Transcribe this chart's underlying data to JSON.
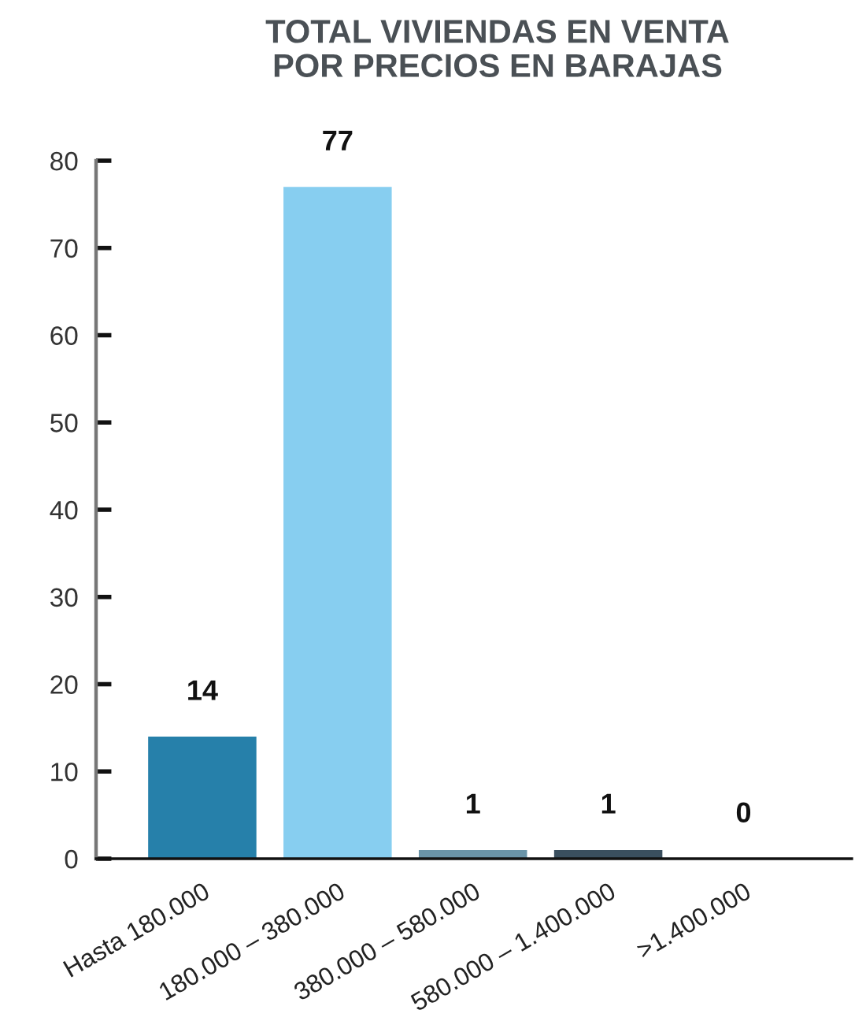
{
  "chart_data": {
    "type": "bar",
    "title": "TOTAL VIVIENDAS EN VENTA\nPOR PRECIOS EN BARAJAS",
    "categories": [
      "Hasta 180.000",
      "180.000 – 380.000",
      "380.000 – 580.000",
      "580.000 – 1.400.000",
      ">1.400.000"
    ],
    "values": [
      14,
      77,
      1,
      1,
      0
    ],
    "colors": [
      "#2680aa",
      "#87cef0",
      "#6a94a8",
      "#3a4f5e",
      "#3a4f5e"
    ],
    "ylim": [
      0,
      80
    ],
    "yticks": [
      0,
      10,
      20,
      30,
      40,
      50,
      60,
      70,
      80
    ],
    "data_labels": true,
    "grid": false,
    "legend": false
  }
}
